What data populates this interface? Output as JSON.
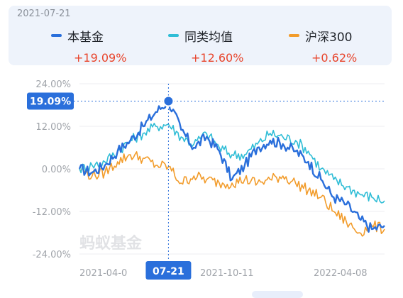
{
  "legend": {
    "date": "2021-07-21",
    "items": [
      {
        "name": "本基金",
        "value": "+19.09%",
        "color": "#2a6fdb"
      },
      {
        "name": "同类均值",
        "value": "+12.60%",
        "color": "#2fbdd6"
      },
      {
        "name": "沪深300",
        "value": "+0.62%",
        "color": "#f29c2b"
      }
    ]
  },
  "cursor": {
    "label": "19.09%",
    "date_label": "07-21"
  },
  "watermark": "蚂蚁基金",
  "chart_data": {
    "type": "line",
    "title": "",
    "xlabel": "",
    "ylabel": "",
    "ylim": [
      -24,
      24
    ],
    "yticks": [
      "24.00%",
      "12.00%",
      "0.00%",
      "-12.00%",
      "-24.00%"
    ],
    "xticks": [
      "2021-04-0",
      "2021-10-11",
      "2022-04-08"
    ],
    "grid": true,
    "x": [
      "2021-04-01",
      "2021-04-21",
      "2021-05-11",
      "2021-05-31",
      "2021-06-21",
      "2021-07-05",
      "2021-07-15",
      "2021-07-21",
      "2021-07-30",
      "2021-08-16",
      "2021-09-01",
      "2021-09-16",
      "2021-10-11",
      "2021-11-01",
      "2021-11-22",
      "2021-12-10",
      "2021-12-31",
      "2022-01-14",
      "2022-01-28",
      "2022-02-18",
      "2022-03-04",
      "2022-03-16",
      "2022-03-31",
      "2022-04-08",
      "2022-04-20"
    ],
    "series": [
      {
        "name": "本基金",
        "color": "#2a6fdb",
        "values": [
          0,
          -1,
          1,
          5,
          8,
          12,
          16,
          19.09,
          11,
          6,
          9,
          5,
          -3,
          1,
          6,
          8,
          7,
          5,
          2,
          -3,
          -8,
          -10,
          -14,
          -17,
          -16
        ]
      },
      {
        "name": "同类均值",
        "color": "#2fbdd6",
        "values": [
          0,
          1,
          2,
          5,
          8,
          10,
          12,
          12.6,
          9,
          7,
          10,
          6,
          4,
          4,
          7,
          10,
          9,
          8,
          5,
          0,
          -3,
          -5,
          -7,
          -8,
          -9
        ]
      },
      {
        "name": "沪深300",
        "color": "#f29c2b",
        "values": [
          0,
          -2,
          -1,
          2,
          4,
          3,
          1,
          0.62,
          -4,
          -2,
          -3,
          -4,
          -4,
          -3,
          -4,
          -3,
          -2,
          -4,
          -6,
          -8,
          -12,
          -15,
          -18,
          -16,
          -17
        ]
      }
    ]
  }
}
